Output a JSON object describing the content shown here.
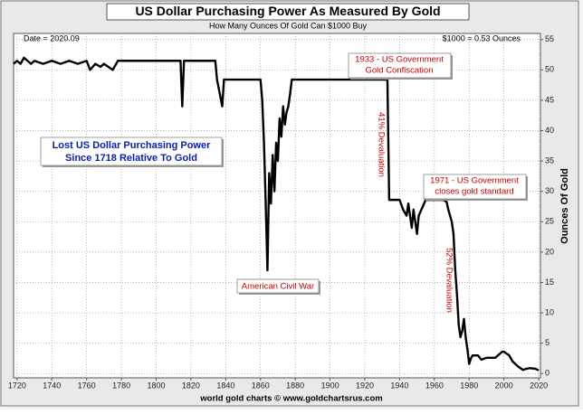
{
  "chart_data": {
    "type": "line",
    "title": "US Dollar Purchasing Power As Measured By Gold",
    "subtitle": "How Many Ounces Of Gold Can $1000 Buy",
    "footer": "world gold charts © www.goldchartsrus.com",
    "y_label": "Ounces Of Gold",
    "annotations": [
      "Date = 2020.09",
      "$1000 = 0.53 Ounces",
      "Lost US Dollar Purchasing Power",
      "Since 1718 Relative To Gold",
      "1933 - US Government",
      "Gold Confiscation",
      "41% Devaluation",
      "1971 - US Government",
      "closes gold standard",
      "American Civil War",
      "52% Devaluation"
    ],
    "x": [
      1718,
      1720,
      1722,
      1724,
      1726,
      1728,
      1730,
      1735,
      1740,
      1745,
      1750,
      1755,
      1760,
      1762,
      1765,
      1768,
      1770,
      1775,
      1778,
      1780,
      1785,
      1790,
      1800,
      1810,
      1814,
      1815,
      1816,
      1817,
      1820,
      1830,
      1834,
      1835,
      1838,
      1839,
      1840,
      1850,
      1860,
      1861,
      1862,
      1863,
      1864,
      1865,
      1866,
      1867,
      1868,
      1869,
      1870,
      1871,
      1872,
      1873,
      1874,
      1875,
      1876,
      1877,
      1878,
      1879,
      1900,
      1920,
      1933,
      1934,
      1935,
      1940,
      1942,
      1944,
      1945,
      1947,
      1948,
      1950,
      1951,
      1955,
      1960,
      1965,
      1967,
      1968,
      1969,
      1970,
      1971,
      1972,
      1973,
      1974,
      1975,
      1976,
      1977,
      1978,
      1979,
      1980,
      1981,
      1982,
      1985,
      1987,
      1990,
      1995,
      1999,
      2000,
      2001,
      2003,
      2005,
      2008,
      2011,
      2013,
      2015,
      2018,
      2020
    ],
    "series": [
      {
        "name": "Ounces Of Gold",
        "color": "#000000",
        "values": [
          51,
          51.5,
          51,
          52,
          51.5,
          51,
          51.5,
          51,
          51.5,
          51,
          51.5,
          51,
          51.5,
          50,
          51,
          50.5,
          51,
          50,
          51.5,
          51.5,
          51.5,
          51.5,
          51.5,
          51.5,
          51.5,
          44,
          51.5,
          51.5,
          51.5,
          51.5,
          51.5,
          48.4,
          44,
          48.4,
          48.4,
          48.4,
          48.4,
          45,
          38,
          28,
          17,
          33,
          28,
          36,
          30,
          38,
          35,
          42,
          39,
          44,
          41,
          43,
          44,
          46,
          48.4,
          48.4,
          48.4,
          48.4,
          48.4,
          28.6,
          28.6,
          28.6,
          27,
          26,
          28,
          24,
          27,
          23,
          26,
          28.6,
          28.6,
          28.6,
          28.3,
          27,
          26,
          25,
          23,
          17,
          13,
          8,
          6,
          7,
          9,
          6,
          4,
          1.6,
          2.5,
          3,
          3,
          2.3,
          2.6,
          2.6,
          3.6,
          3.6,
          3.4,
          3,
          2,
          1.2,
          0.6,
          0.8,
          0.9,
          0.8,
          0.53
        ]
      }
    ],
    "xlim": [
      1718,
      2021
    ],
    "ylim": [
      -0.7,
      56
    ],
    "xticks": [
      1720,
      1740,
      1760,
      1780,
      1800,
      1820,
      1840,
      1860,
      1880,
      1900,
      1920,
      1940,
      1960,
      1980,
      2000,
      2020
    ],
    "yticks": [
      0,
      5,
      10,
      15,
      20,
      25,
      30,
      35,
      40,
      45,
      50,
      55
    ],
    "grid": true
  }
}
